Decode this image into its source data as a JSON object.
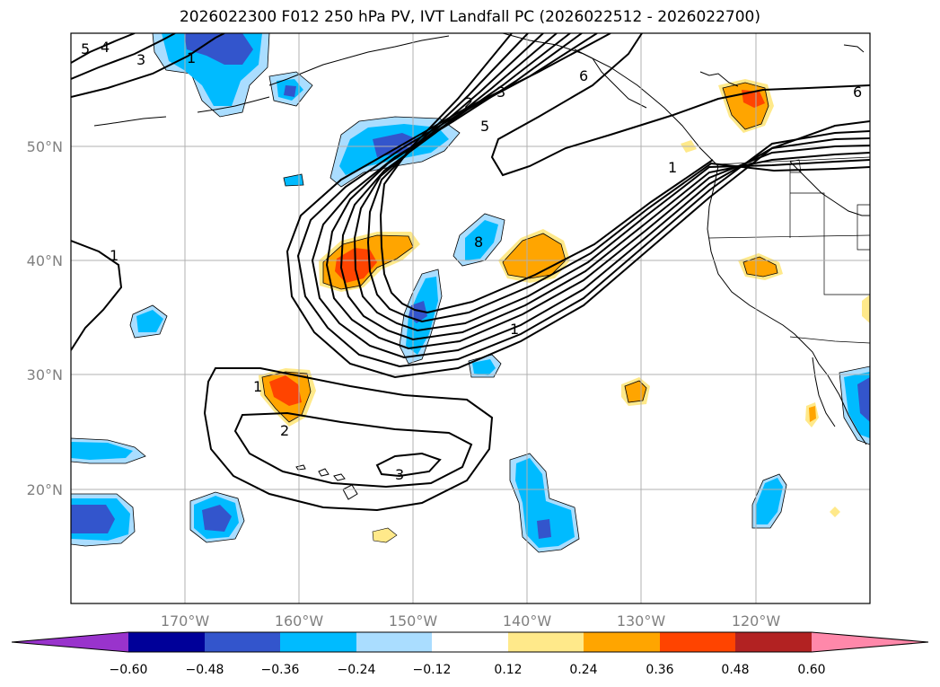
{
  "title": "2026022300 F012 250 hPa PV, IVT Landfall PC (2026022512 - 2026022700)",
  "axes": {
    "lon_labels": [
      "170°W",
      "160°W",
      "150°W",
      "140°W",
      "130°W",
      "120°W"
    ],
    "lat_labels": [
      "50°N",
      "40°N",
      "30°N",
      "20°N"
    ],
    "grid": true
  },
  "colorbar": {
    "tick_labels": [
      "−0.60",
      "−0.48",
      "−0.36",
      "−0.24",
      "−0.12",
      "0.12",
      "0.24",
      "0.36",
      "0.48",
      "0.60"
    ],
    "colors": [
      "#9933cc",
      "#000099",
      "#3355cc",
      "#00bbff",
      "#aaddff",
      "#ffffff",
      "#ffe98a",
      "#ffa500",
      "#ff4400",
      "#b22222",
      "#ff88aa"
    ],
    "extend": "both"
  },
  "contour_labels": [
    "5",
    "4",
    "3",
    "1",
    "2",
    "3",
    "5",
    "6",
    "6",
    "1",
    "8",
    "1",
    "1",
    "1",
    "2",
    "3"
  ]
}
